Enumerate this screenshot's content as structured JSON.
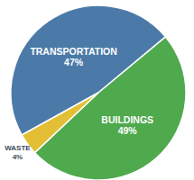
{
  "chart_data": {
    "type": "pie",
    "categories": [
      "TRANSPORTATION",
      "BUILDINGS",
      "WASTE"
    ],
    "values": [
      47,
      49,
      4
    ],
    "value_labels": [
      "47%",
      "49%",
      "4%"
    ],
    "colors": [
      "#4b7aa8",
      "#4fa94d",
      "#e2bf35"
    ],
    "data_labels": true
  }
}
